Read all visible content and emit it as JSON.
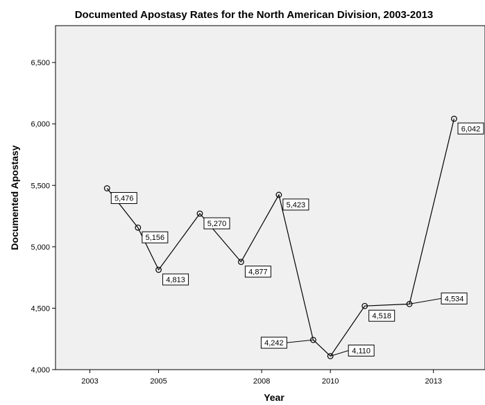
{
  "chart_data": {
    "type": "line",
    "title": "Documented Apostasy Rates for the North American Division, 2003-2013",
    "xlabel": "Year",
    "ylabel": "Documented Apostasy",
    "xlim": [
      2002.0,
      2014.5
    ],
    "ylim": [
      4000,
      6800
    ],
    "x_ticks": [
      2003,
      2005,
      2008,
      2010,
      2013
    ],
    "x_tick_labels": [
      "2003",
      "2005",
      "2008",
      "2010",
      "2013"
    ],
    "y_ticks": [
      4000,
      4500,
      5000,
      5500,
      6000,
      6500
    ],
    "y_tick_labels": [
      "4,000",
      "4,500",
      "5,000",
      "5,500",
      "6,000",
      "6,500"
    ],
    "grid": false,
    "series": [
      {
        "points": [
          {
            "x": 2003.5,
            "y": 5476,
            "label": "5,476"
          },
          {
            "x": 2004.4,
            "y": 5156,
            "label": "5,156"
          },
          {
            "x": 2005.0,
            "y": 4813,
            "label": "4,813"
          },
          {
            "x": 2006.2,
            "y": 5270,
            "label": "5,270"
          },
          {
            "x": 2007.4,
            "y": 4877,
            "label": "4,877"
          },
          {
            "x": 2008.5,
            "y": 5423,
            "label": "5,423"
          },
          {
            "x": 2009.5,
            "y": 4242,
            "label": "4,242"
          },
          {
            "x": 2010.0,
            "y": 4110,
            "label": "4,110"
          },
          {
            "x": 2011.0,
            "y": 4518,
            "label": "4,518"
          },
          {
            "x": 2012.3,
            "y": 4534,
            "label": "4,534"
          },
          {
            "x": 2013.6,
            "y": 6042,
            "label": "6,042"
          }
        ]
      }
    ]
  }
}
